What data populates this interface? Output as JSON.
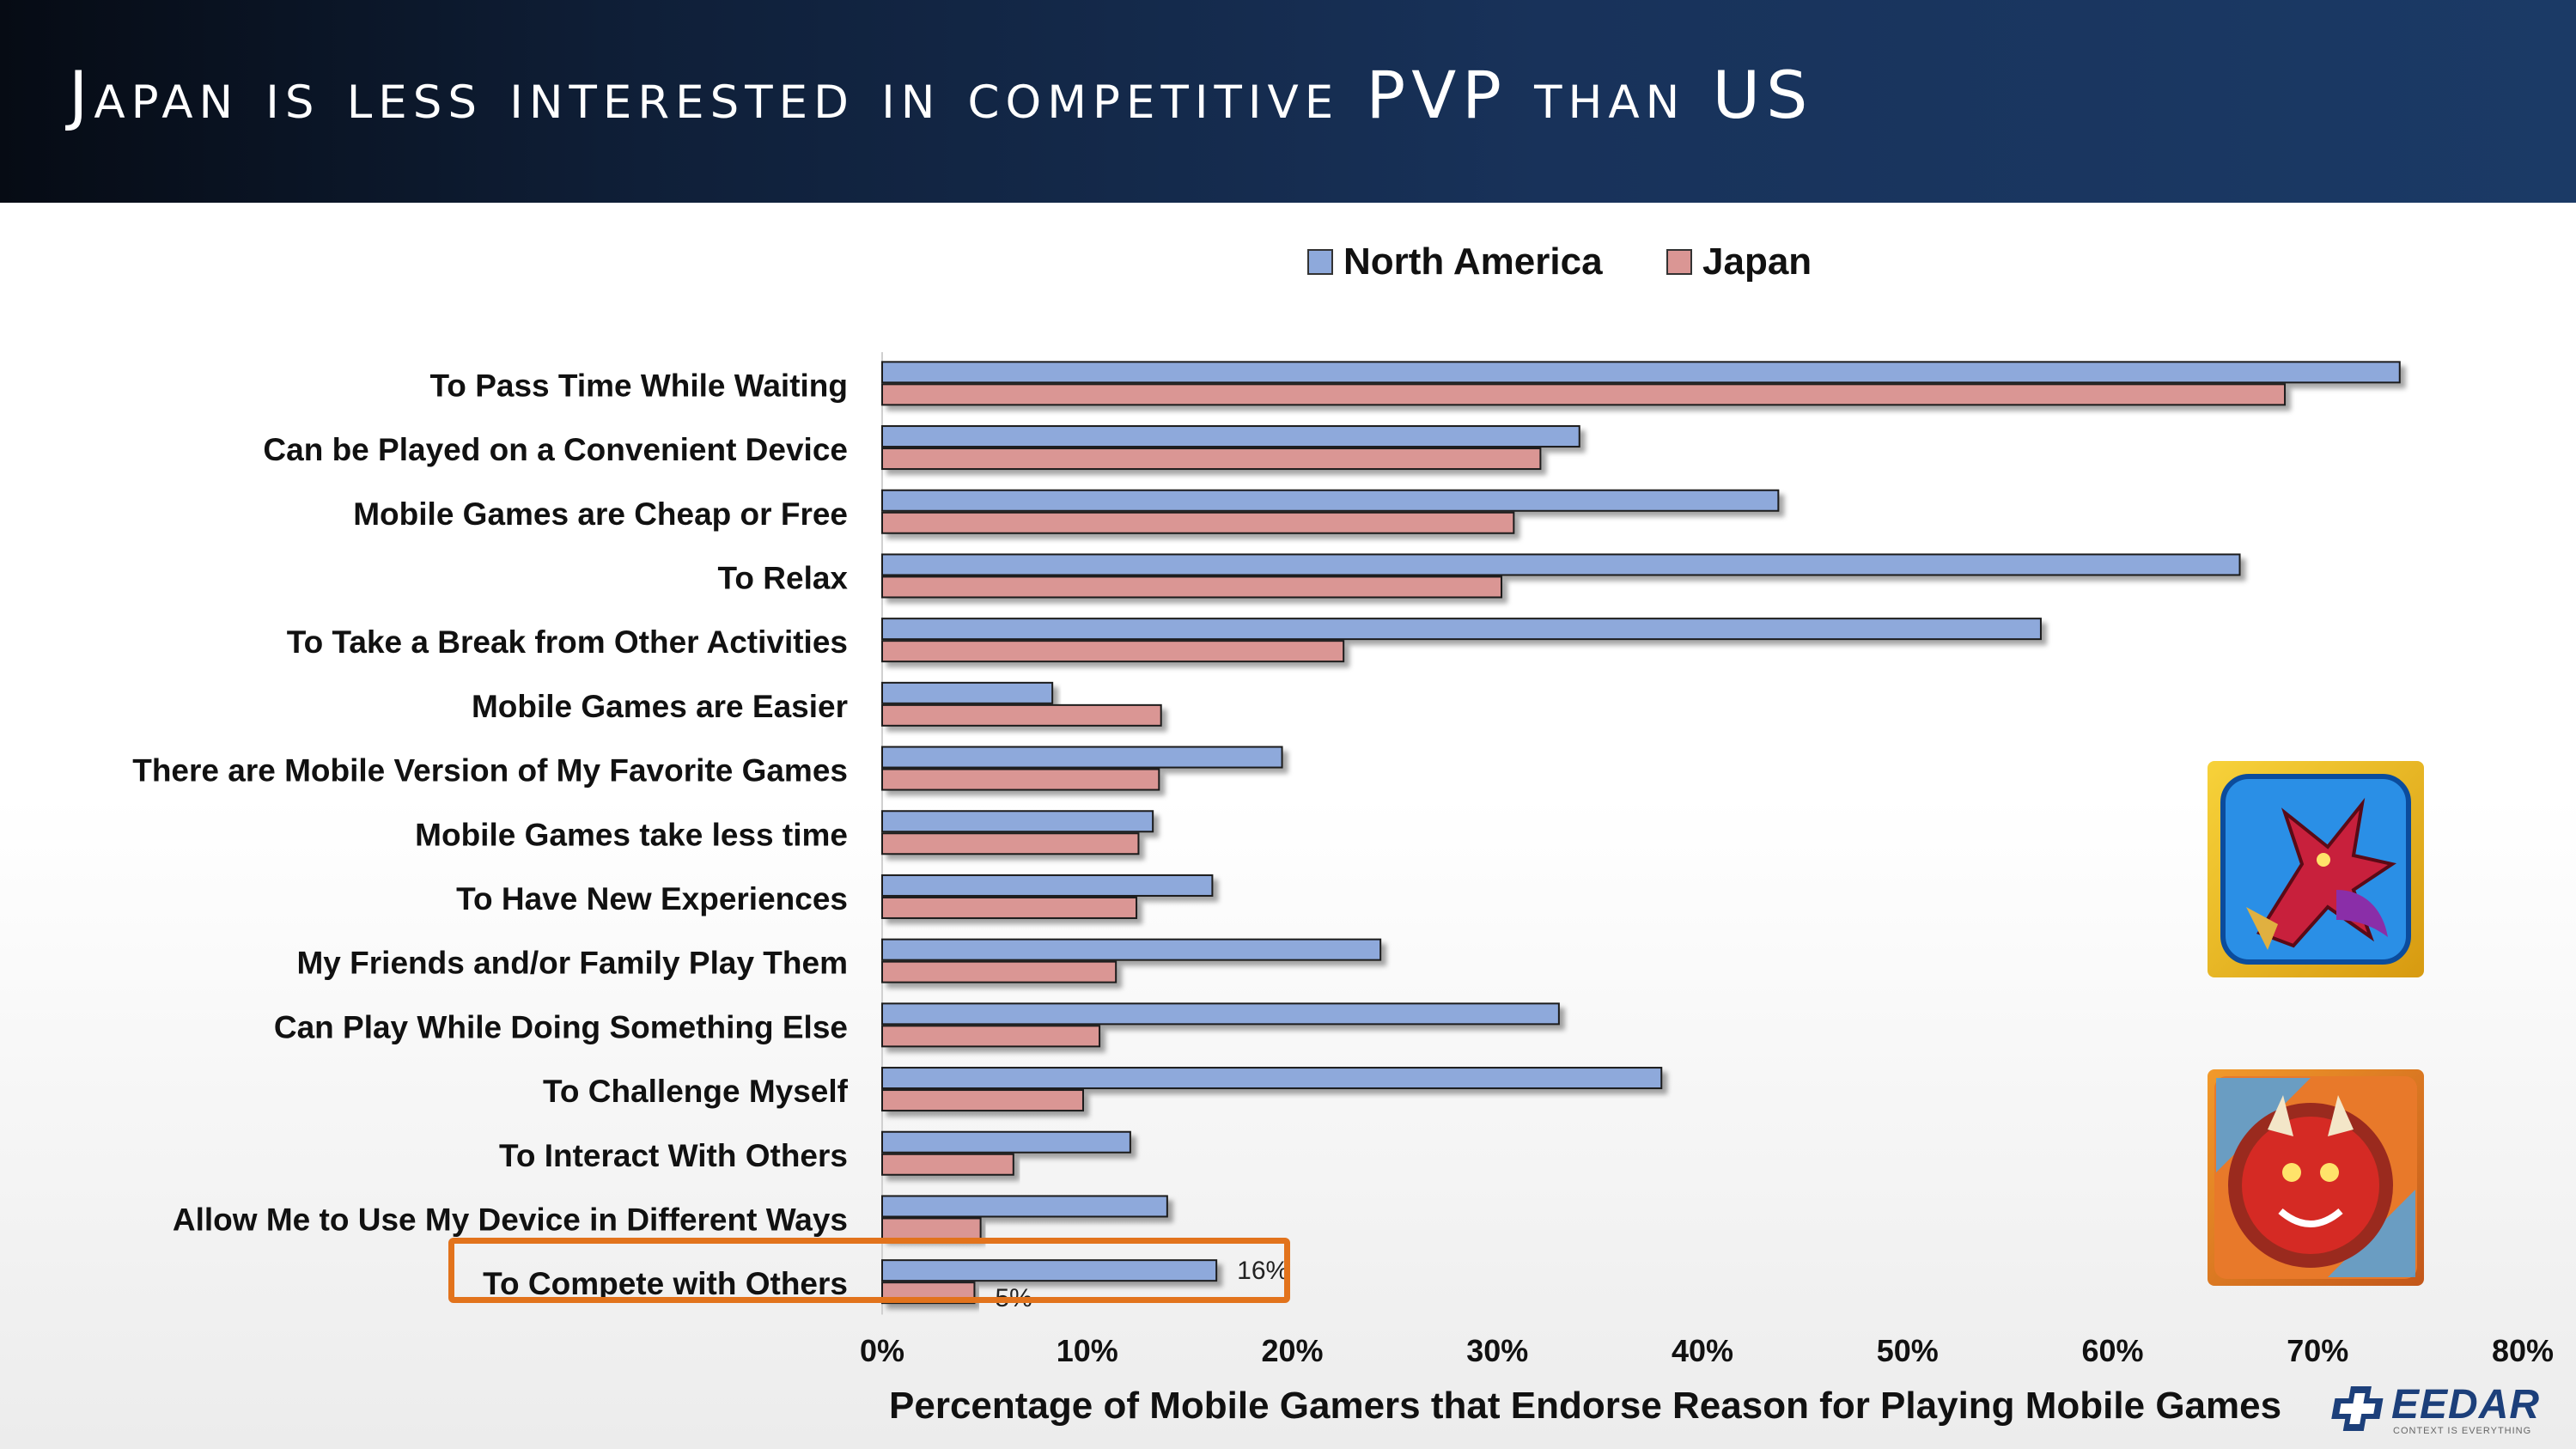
{
  "slide_title": "Japan is less interested in competitive PVP than US",
  "legend": [
    {
      "label": "North America",
      "color": "#8ea9db"
    },
    {
      "label": "Japan",
      "color": "#da9694"
    }
  ],
  "chart_data": {
    "type": "bar",
    "orientation": "horizontal",
    "xlabel": "Percentage of Mobile Gamers that Endorse Reason for Playing Mobile Games",
    "ylabel": "",
    "xlim": [
      0,
      80
    ],
    "x_ticks": [
      "0%",
      "10%",
      "20%",
      "30%",
      "40%",
      "50%",
      "60%",
      "70%",
      "80%"
    ],
    "categories": [
      "To Pass Time While Waiting",
      "Can be Played on a Convenient Device",
      "Mobile Games are Cheap or Free",
      "To Relax",
      "To Take a Break from Other Activities",
      "Mobile Games are Easier",
      "There are Mobile Version of My Favorite Games",
      "Mobile Games take less time",
      "To Have New Experiences",
      "My Friends and/or Family Play Them",
      "Can Play While Doing Something Else",
      "To Challenge Myself",
      "To Interact With Others",
      "Allow Me to Use My Device in Different Ways",
      "To Compete with Others"
    ],
    "series": [
      {
        "name": "North America",
        "color": "#8ea9db",
        "values": [
          74,
          34,
          43.7,
          66.2,
          56.5,
          8.3,
          19.5,
          13.2,
          16.1,
          24.3,
          33,
          38,
          12.1,
          13.9,
          16.3
        ]
      },
      {
        "name": "Japan",
        "color": "#da9694",
        "values": [
          68.4,
          32.1,
          30.8,
          30.2,
          22.5,
          13.6,
          13.5,
          12.5,
          12.4,
          11.4,
          10.6,
          9.8,
          6.4,
          4.8,
          4.5
        ]
      }
    ],
    "data_labels": {
      "na": "16%",
      "jp": "5%"
    },
    "legend_position": "top",
    "grid": false
  },
  "images": [
    {
      "name": "puzzle-and-dragons-app-icon"
    },
    {
      "name": "monster-strike-app-icon"
    }
  ],
  "logo": {
    "text": "EEDAR",
    "tagline": "CONTEXT IS EVERYTHING"
  }
}
